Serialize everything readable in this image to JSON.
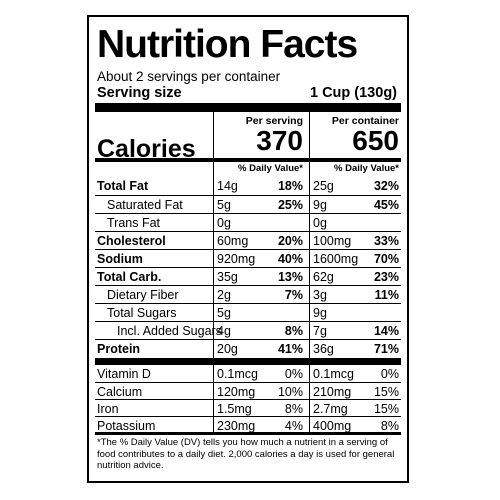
{
  "title": "Nutrition Facts",
  "servings_per_container": "About 2 servings per container",
  "serving_size_label": "Serving size",
  "serving_size_value": "1 Cup (130g)",
  "per_serving_label": "Per serving",
  "per_container_label": "Per container",
  "calories_label": "Calories",
  "calories_per_serving": "370",
  "calories_per_container": "650",
  "daily_value_header": "% Daily Value*",
  "nutrients": [
    {
      "name": "Total Fat",
      "bold": true,
      "indent": 0,
      "serving_amount": "14g",
      "serving_dv": "18%",
      "container_amount": "25g",
      "container_dv": "32%"
    },
    {
      "name": "Saturated Fat",
      "bold": false,
      "indent": 1,
      "serving_amount": "5g",
      "serving_dv": "25%",
      "container_amount": "9g",
      "container_dv": "45%"
    },
    {
      "name": "Trans Fat",
      "bold": false,
      "indent": 1,
      "serving_amount": "0g",
      "serving_dv": "",
      "container_amount": "0g",
      "container_dv": ""
    },
    {
      "name": "Cholesterol",
      "bold": true,
      "indent": 0,
      "serving_amount": "60mg",
      "serving_dv": "20%",
      "container_amount": "100mg",
      "container_dv": "33%"
    },
    {
      "name": "Sodium",
      "bold": true,
      "indent": 0,
      "serving_amount": "920mg",
      "serving_dv": "40%",
      "container_amount": "1600mg",
      "container_dv": "70%"
    },
    {
      "name": "Total Carb.",
      "bold": true,
      "indent": 0,
      "serving_amount": "35g",
      "serving_dv": "13%",
      "container_amount": "62g",
      "container_dv": "23%"
    },
    {
      "name": "Dietary Fiber",
      "bold": false,
      "indent": 1,
      "serving_amount": "2g",
      "serving_dv": "7%",
      "container_amount": "3g",
      "container_dv": "11%"
    },
    {
      "name": "Total Sugars",
      "bold": false,
      "indent": 1,
      "serving_amount": "5g",
      "serving_dv": "",
      "container_amount": "9g",
      "container_dv": ""
    },
    {
      "name": "Incl. Added Sugars",
      "bold": false,
      "indent": 2,
      "serving_amount": "4g",
      "serving_dv": "8%",
      "container_amount": "7g",
      "container_dv": "14%"
    },
    {
      "name": "Protein",
      "bold": true,
      "indent": 0,
      "serving_amount": "20g",
      "serving_dv": "41%",
      "container_amount": "36g",
      "container_dv": "71%"
    }
  ],
  "vitamins": [
    {
      "name": "Vitamin D",
      "serving_amount": "0.1mcg",
      "serving_dv": "0%",
      "container_amount": "0.1mcg",
      "container_dv": "0%"
    },
    {
      "name": "Calcium",
      "serving_amount": "120mg",
      "serving_dv": "10%",
      "container_amount": "210mg",
      "container_dv": "15%"
    },
    {
      "name": "Iron",
      "serving_amount": "1.5mg",
      "serving_dv": "8%",
      "container_amount": "2.7mg",
      "container_dv": "15%"
    },
    {
      "name": "Potassium",
      "serving_amount": "230mg",
      "serving_dv": "4%",
      "container_amount": "400mg",
      "container_dv": "8%"
    }
  ],
  "footnote": "*The % Daily Value (DV) tells you how much a nutrient in a serving of food contributes to a daily diet. 2,000 calories a day is used for general nutrition advice."
}
